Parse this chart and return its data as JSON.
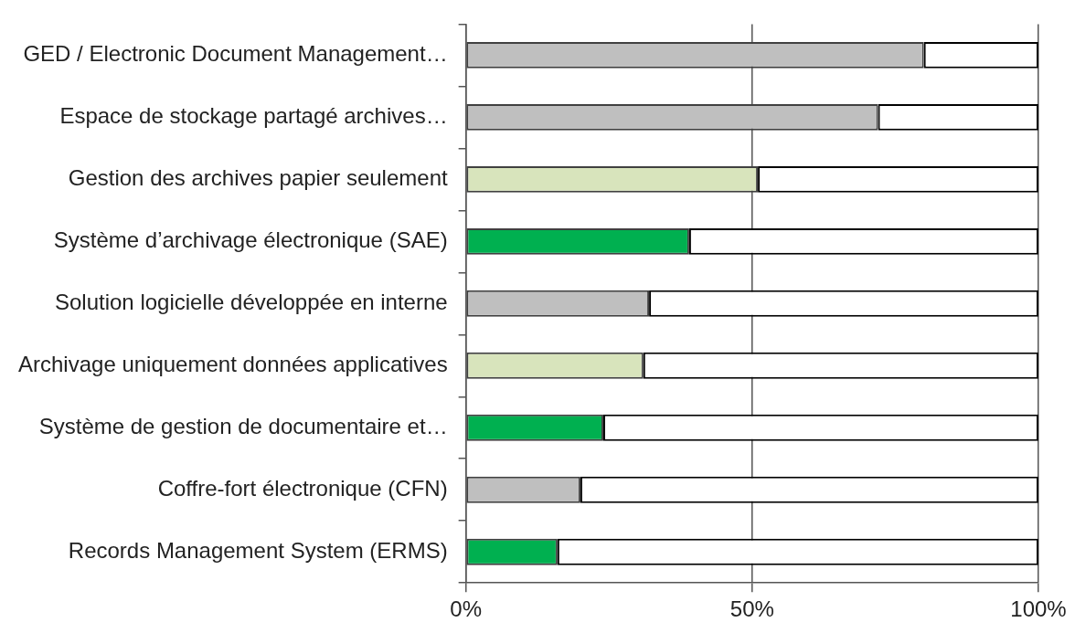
{
  "chart_data": {
    "type": "bar",
    "orientation": "horizontal",
    "stacked": true,
    "categories": [
      "GED / Electronic Document Management…",
      "Espace de stockage partagé archives…",
      "Gestion des archives papier seulement",
      "Système d’archivage électronique (SAE)",
      "Solution logicielle développée en interne",
      "Archivage uniquement données applicatives",
      "Système de gestion de documentaire et…",
      "Coffre-fort électronique (CFN)",
      "Records Management System (ERMS)"
    ],
    "series": [
      {
        "colors": [
          "#bfbfbf",
          "#bfbfbf",
          "#d8e4bc",
          "#00b050",
          "#bfbfbf",
          "#d8e4bc",
          "#00b050",
          "#bfbfbf",
          "#00b050"
        ],
        "values": [
          80,
          72,
          51,
          39,
          32,
          31,
          24,
          20,
          16
        ]
      },
      {
        "color": "#ffffff",
        "values": [
          20,
          28,
          49,
          61,
          68,
          69,
          76,
          80,
          84
        ]
      }
    ],
    "xlim": [
      0,
      100
    ],
    "xticks": [
      {
        "value": 0,
        "label": "0%"
      },
      {
        "value": 50,
        "label": "50%"
      },
      {
        "value": 100,
        "label": "100%"
      }
    ],
    "grid": "x",
    "legend": false
  }
}
